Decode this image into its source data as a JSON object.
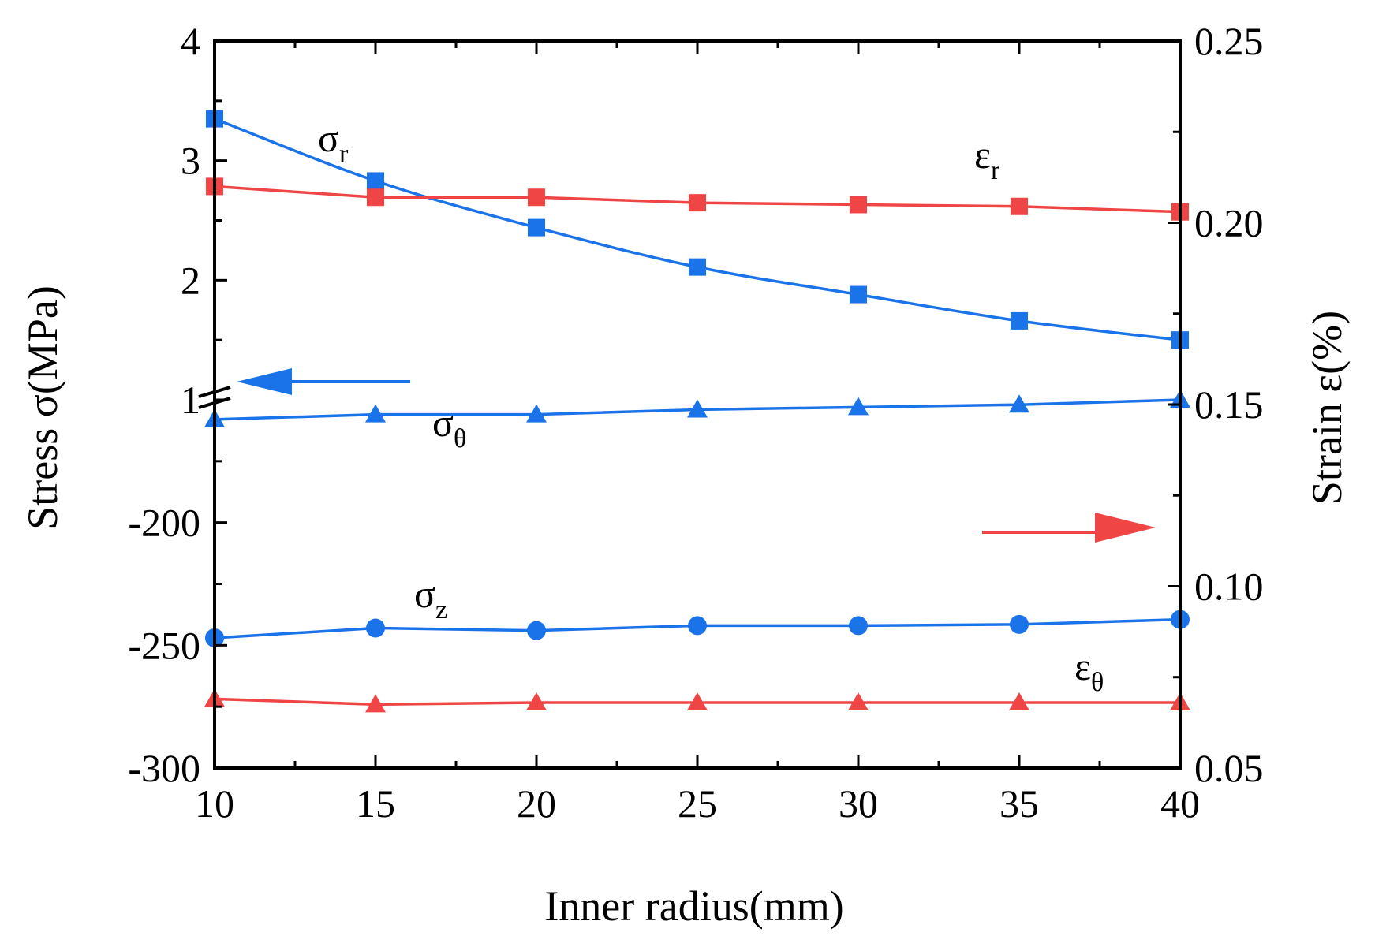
{
  "chart_data": {
    "type": "line",
    "xlabel": "Inner radius(mm)",
    "ylabel_left": "Stress σ(MPa)",
    "ylabel_right": "Strain ε(%)",
    "x_ticks": [
      "10",
      "15",
      "20",
      "25",
      "30",
      "35",
      "40"
    ],
    "xlim": [
      10,
      40
    ],
    "left_axis": {
      "upper_segment": {
        "range": [
          1,
          4
        ],
        "ticks": [
          "1",
          "2",
          "3",
          "4"
        ]
      },
      "lower_segment": {
        "range": [
          -300,
          -150
        ],
        "ticks": [
          "-300",
          "-250",
          "-200"
        ]
      },
      "broken": true
    },
    "right_axis": {
      "range": [
        0.05,
        0.25
      ],
      "ticks": [
        "0.05",
        "0.10",
        "0.15",
        "0.20",
        "0.25"
      ]
    },
    "x": [
      10,
      15,
      20,
      25,
      30,
      35,
      40
    ],
    "series": [
      {
        "name": "σr",
        "symbol": "σ",
        "subscript": "r",
        "axis": "left-upper",
        "marker": "square",
        "color": "#1a73e8",
        "values": [
          3.35,
          2.83,
          2.44,
          2.11,
          1.88,
          1.66,
          1.5
        ]
      },
      {
        "name": "σθ",
        "symbol": "σ",
        "subscript": "θ",
        "axis": "left-lower",
        "marker": "triangle",
        "color": "#1a73e8",
        "values": [
          -158,
          -156,
          -156,
          -154,
          -153,
          -152,
          -150
        ]
      },
      {
        "name": "σz",
        "symbol": "σ",
        "subscript": "z",
        "axis": "left-lower",
        "marker": "circle",
        "color": "#1a73e8",
        "values": [
          -247,
          -243,
          -244,
          -242,
          -242,
          -241.5,
          -239.5
        ]
      },
      {
        "name": "εr",
        "symbol": "ε",
        "subscript": "r",
        "axis": "right",
        "marker": "square",
        "color": "#f04545",
        "values": [
          0.21,
          0.207,
          0.207,
          0.2055,
          0.205,
          0.2045,
          0.203
        ]
      },
      {
        "name": "εθ",
        "symbol": "ε",
        "subscript": "θ",
        "axis": "right",
        "marker": "triangle",
        "color": "#f04545",
        "values": [
          0.069,
          0.0675,
          0.068,
          0.068,
          0.068,
          0.068,
          0.068
        ]
      }
    ],
    "axis_indicators": [
      {
        "direction": "left",
        "points_to": "left axis",
        "color": "#1a73e8"
      },
      {
        "direction": "right",
        "points_to": "right axis",
        "color": "#f04545"
      }
    ]
  }
}
